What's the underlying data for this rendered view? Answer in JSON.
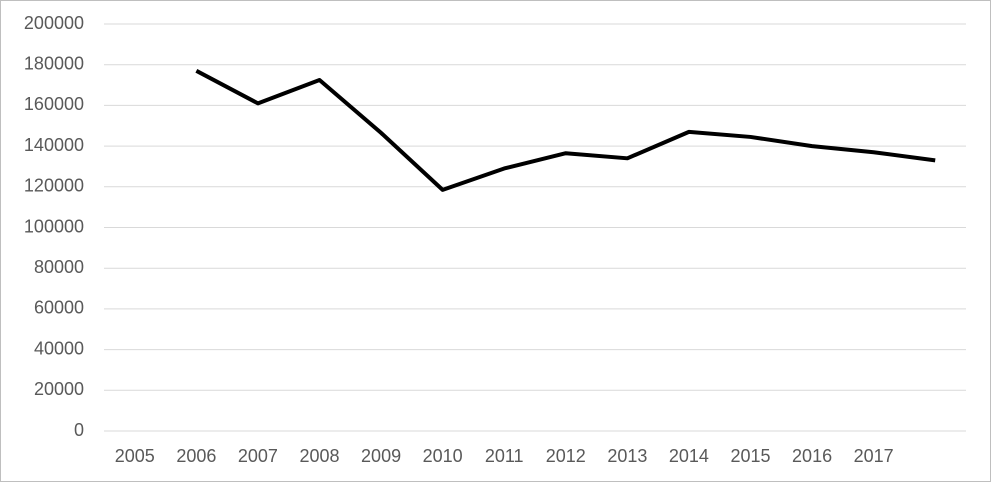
{
  "chart_data": {
    "type": "line",
    "categories": [
      "2005",
      "2006",
      "2007",
      "2008",
      "2009",
      "2010",
      "2011",
      "2012",
      "2013",
      "2014",
      "2015",
      "2016",
      "2017",
      null
    ],
    "series": [
      {
        "color": "#000000",
        "values": [
          null,
          177000,
          161000,
          172500,
          146500,
          118500,
          129000,
          136500,
          134000,
          147000,
          144500,
          140000,
          137000,
          133000
        ]
      }
    ],
    "ylim": [
      0,
      200000
    ],
    "yticks": [
      0,
      20000,
      40000,
      60000,
      80000,
      100000,
      120000,
      140000,
      160000,
      180000,
      200000
    ],
    "grid": true
  }
}
